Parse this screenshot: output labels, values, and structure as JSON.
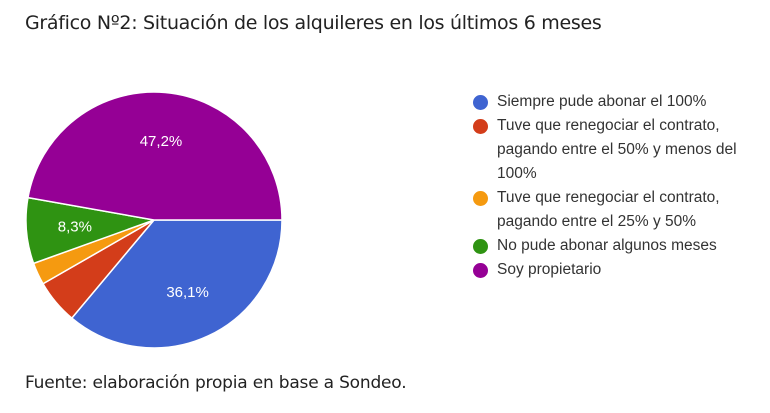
{
  "title": "Gráfico Nº2: Situación de los alquileres en los últimos 6 meses",
  "source": "Fuente: elaboración propia en base a Sondeo.",
  "chart_data": {
    "type": "pie",
    "title": "Gráfico Nº2: Situación de los alquileres en los últimos 6 meses",
    "categories": [
      "Siempre pude abonar el 100%",
      "Tuve que renegociar el contrato, pagando entre el 50% y menos del 100%",
      "Tuve que renegociar el contrato, pagando entre el 25% y 50%",
      "No pude abonar algunos meses",
      "Soy propietario"
    ],
    "values": [
      36.1,
      5.6,
      2.8,
      8.3,
      47.2
    ],
    "colors": [
      "#3f64d1",
      "#d33d1a",
      "#f59a10",
      "#2f9312",
      "#950095"
    ],
    "data_labels": [
      "36,1%",
      "",
      "",
      "8,3%",
      "47,2%"
    ],
    "legend_position": "right",
    "source": "Fuente: elaboración propia en base a Sondeo."
  },
  "legend": [
    {
      "lines": [
        "Siempre pude abonar el 100%"
      ],
      "color": "#3f64d1"
    },
    {
      "lines": [
        "Tuve que renegociar el contrato,",
        "pagando entre el 50% y menos del",
        "100%"
      ],
      "color": "#d33d1a"
    },
    {
      "lines": [
        "Tuve que renegociar el contrato,",
        "pagando entre el 25% y 50%"
      ],
      "color": "#f59a10"
    },
    {
      "lines": [
        "No pude abonar algunos meses"
      ],
      "color": "#2f9312"
    },
    {
      "lines": [
        "Soy propietario"
      ],
      "color": "#950095"
    }
  ]
}
